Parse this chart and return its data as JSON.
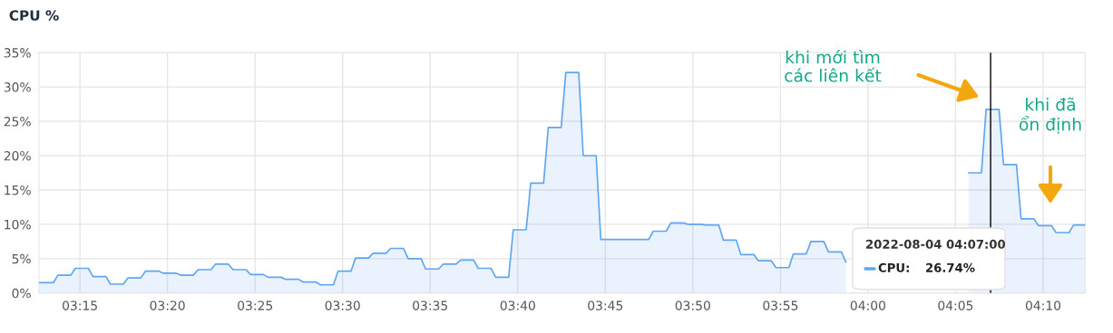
{
  "chart_data": {
    "type": "area",
    "title": "CPU %",
    "x": [
      3.211,
      3.2247,
      3.229,
      3.2413,
      3.2457,
      3.258,
      3.2624,
      3.2747,
      3.279,
      3.2913,
      3.2957,
      3.308,
      3.3124,
      3.3247,
      3.329,
      3.3413,
      3.3457,
      3.358,
      3.3624,
      3.3747,
      3.379,
      3.3913,
      3.3957,
      3.408,
      3.4124,
      3.4247,
      3.429,
      3.4413,
      3.4457,
      3.458,
      3.4624,
      3.4747,
      3.479,
      3.4913,
      3.4957,
      3.508,
      3.5124,
      3.5247,
      3.529,
      3.5413,
      3.5457,
      3.558,
      3.5624,
      3.5747,
      3.579,
      3.5913,
      3.5957,
      3.608,
      3.6124,
      3.6247,
      3.629,
      3.6413,
      3.6457,
      3.658,
      3.6624,
      3.6747,
      3.679,
      3.6913,
      3.6957,
      3.708,
      3.7124,
      3.7247,
      3.729,
      3.7413,
      3.7457,
      3.7913,
      3.7957,
      3.808,
      3.8124,
      3.8247,
      3.829,
      3.8413,
      3.8457,
      3.858,
      3.8624,
      3.8747,
      3.879,
      3.8913,
      3.8957,
      3.908,
      3.9124,
      3.9247,
      3.929,
      3.9413,
      3.9457,
      3.958,
      3.9624,
      3.9747,
      3.979,
      3.9913,
      4.0333,
      4.0957,
      4.108,
      4.1124,
      4.1247,
      4.129,
      4.1413,
      4.1457,
      4.158,
      4.1624,
      4.1747,
      4.179,
      4.1913,
      4.1957,
      4.2067
    ],
    "series": [
      {
        "color": "#5ea6f2",
        "values": [
          1.5,
          1.5,
          2.6,
          2.6,
          3.6,
          3.6,
          2.4,
          2.4,
          1.3,
          1.3,
          2.2,
          2.2,
          3.2,
          3.2,
          2.9,
          2.9,
          2.6,
          2.6,
          3.4,
          3.4,
          4.2,
          4.2,
          3.4,
          3.4,
          2.7,
          2.7,
          2.3,
          2.3,
          2.0,
          2.0,
          1.6,
          1.6,
          1.2,
          1.2,
          3.2,
          3.2,
          5.1,
          5.1,
          5.8,
          5.8,
          6.5,
          6.5,
          5.0,
          5.0,
          3.5,
          3.5,
          4.2,
          4.2,
          4.8,
          4.8,
          3.6,
          3.6,
          2.3,
          2.3,
          9.2,
          9.2,
          16.0,
          16.0,
          24.1,
          24.1,
          32.1,
          32.1,
          20.0,
          20.0,
          7.8,
          7.8,
          9.0,
          9.0,
          10.2,
          10.2,
          10.0,
          10.0,
          9.9,
          9.9,
          7.7,
          7.7,
          5.6,
          5.6,
          4.7,
          4.7,
          3.7,
          3.7,
          5.7,
          5.7,
          7.5,
          7.5,
          6.0,
          6.0,
          4.5,
          null,
          null,
          17.5,
          17.5,
          26.74,
          26.74,
          18.7,
          18.7,
          10.8,
          10.8,
          9.8,
          9.8,
          8.8,
          8.8,
          9.9,
          9.9
        ]
      }
    ],
    "xlim": [
      3.211,
      4.2067
    ],
    "xticks": [
      {
        "value": 3.25,
        "label": "03:15"
      },
      {
        "value": 3.3333,
        "label": "03:20"
      },
      {
        "value": 3.4167,
        "label": "03:25"
      },
      {
        "value": 3.5,
        "label": "03:30"
      },
      {
        "value": 3.5833,
        "label": "03:35"
      },
      {
        "value": 3.6667,
        "label": "03:40"
      },
      {
        "value": 3.75,
        "label": "03:45"
      },
      {
        "value": 3.8333,
        "label": "03:50"
      },
      {
        "value": 3.9167,
        "label": "03:55"
      },
      {
        "value": 4.0,
        "label": "04:00"
      },
      {
        "value": 4.0833,
        "label": "04:05"
      },
      {
        "value": 4.1667,
        "label": "04:10"
      }
    ],
    "ylim": [
      0,
      35
    ],
    "yticks": [
      {
        "value": 0,
        "label": "0%"
      },
      {
        "value": 5,
        "label": "5%"
      },
      {
        "value": 10,
        "label": "10%"
      },
      {
        "value": 15,
        "label": "15%"
      },
      {
        "value": 20,
        "label": "20%"
      },
      {
        "value": 25,
        "label": "25%"
      },
      {
        "value": 30,
        "label": "30%"
      },
      {
        "value": 35,
        "label": "35%"
      }
    ],
    "grid": true,
    "ref_lines": [
      {
        "axis": "x",
        "value": 4.1167,
        "color": "#000000"
      }
    ],
    "annotations": [
      "khi mới tìm\ncác liên kết",
      "khi đã\nổn định",
      "2022-08-04 04:07:00",
      "CPU:",
      "26.74%"
    ]
  }
}
